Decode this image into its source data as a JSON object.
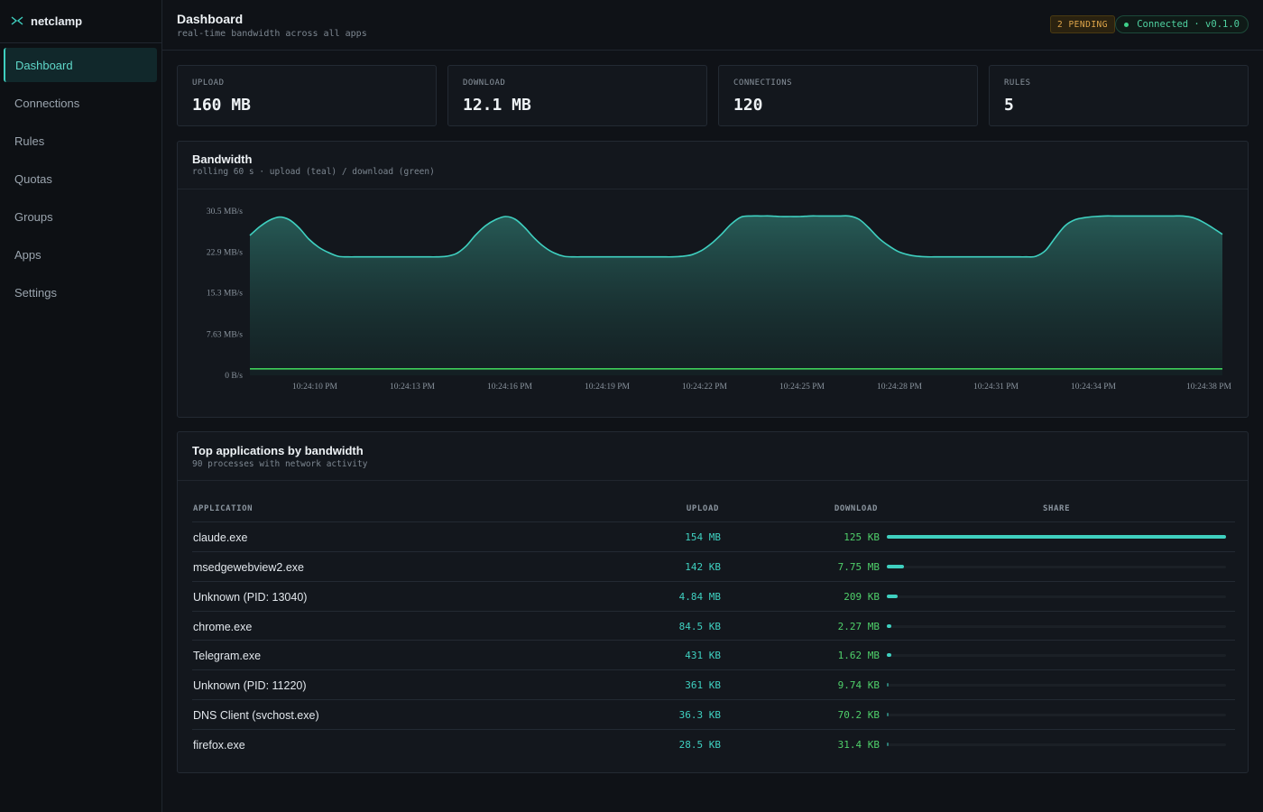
{
  "brand": {
    "name": "netclamp",
    "icon": "link-icon"
  },
  "nav": [
    {
      "label": "Dashboard",
      "active": true
    },
    {
      "label": "Connections"
    },
    {
      "label": "Rules"
    },
    {
      "label": "Quotas"
    },
    {
      "label": "Groups"
    },
    {
      "label": "Apps"
    },
    {
      "label": "Settings"
    }
  ],
  "header": {
    "title": "Dashboard",
    "subtitle": "real-time bandwidth across all apps",
    "pending": "2 PENDING",
    "connection": "Connected · v0.1.0"
  },
  "stats": [
    {
      "label": "UPLOAD",
      "value": "160 MB"
    },
    {
      "label": "DOWNLOAD",
      "value": "12.1 MB"
    },
    {
      "label": "CONNECTIONS",
      "value": "120"
    },
    {
      "label": "RULES",
      "value": "5"
    }
  ],
  "bandwidth": {
    "title": "Bandwidth",
    "subtitle": "rolling 60 s · upload (teal) / download (green)"
  },
  "chart_data": {
    "type": "area",
    "title": "Bandwidth",
    "ylim": [
      0,
      30.5
    ],
    "yticks": [
      "0 B/s",
      "7.63 MB/s",
      "15.3 MB/s",
      "22.9 MB/s",
      "30.5 MB/s"
    ],
    "ytick_values": [
      0,
      7.63,
      15.3,
      22.9,
      30.5
    ],
    "xticks": [
      "10:24:10 PM",
      "10:24:13 PM",
      "10:24:16 PM",
      "10:24:19 PM",
      "10:24:22 PM",
      "10:24:25 PM",
      "10:24:28 PM",
      "10:24:31 PM",
      "10:24:34 PM",
      "10:24:38 PM"
    ],
    "series": [
      {
        "name": "upload",
        "color": "#3fd0c0",
        "values": [
          26.0,
          27.6,
          28.8,
          29.4,
          28.9,
          27.4,
          25.3,
          23.8,
          22.8,
          22.1,
          22.0,
          22.0,
          22.0,
          22.0,
          22.0,
          22.0,
          22.0,
          22.0,
          22.0,
          22.0,
          22.1,
          22.6,
          24.0,
          26.1,
          27.8,
          28.9,
          29.5,
          29.0,
          27.4,
          25.4,
          23.8,
          22.7,
          22.1,
          22.0,
          22.0,
          22.0,
          22.0,
          22.0,
          22.0,
          22.0,
          22.0,
          22.0,
          22.0,
          22.0,
          22.1,
          22.4,
          23.2,
          24.5,
          26.2,
          28.1,
          29.4,
          29.6,
          29.6,
          29.6,
          29.5,
          29.5,
          29.5,
          29.6,
          29.6,
          29.6,
          29.6,
          29.6,
          29.0,
          27.4,
          25.5,
          24.1,
          23.0,
          22.4,
          22.1,
          22.0,
          22.0,
          22.0,
          22.0,
          22.0,
          22.0,
          22.0,
          22.0,
          22.0,
          22.0,
          22.0,
          22.1,
          23.2,
          25.6,
          27.8,
          28.9,
          29.3,
          29.5,
          29.6,
          29.6,
          29.6,
          29.6,
          29.6,
          29.6,
          29.6,
          29.6,
          29.6,
          29.3,
          28.5,
          27.4,
          26.2
        ]
      },
      {
        "name": "download",
        "color": "#3fcf5a",
        "values": [
          1.2,
          1.2,
          1.2,
          1.2,
          1.2,
          1.2,
          1.2,
          1.2,
          1.2,
          1.2,
          1.2,
          1.2,
          1.2,
          1.2,
          1.2,
          1.2,
          1.2,
          1.2,
          1.2,
          1.2,
          1.2,
          1.2,
          1.2,
          1.2,
          1.2,
          1.2,
          1.2,
          1.2,
          1.2,
          1.2,
          1.2,
          1.2,
          1.2,
          1.2,
          1.2,
          1.2,
          1.2,
          1.2,
          1.2,
          1.2,
          1.2,
          1.2,
          1.2,
          1.2,
          1.2,
          1.2,
          1.2,
          1.2,
          1.2,
          1.2,
          1.2,
          1.2,
          1.2,
          1.2,
          1.2,
          1.2,
          1.2,
          1.2,
          1.2,
          1.2,
          1.2,
          1.2,
          1.2,
          1.2,
          1.2,
          1.2,
          1.2,
          1.2,
          1.2,
          1.2,
          1.2,
          1.2,
          1.2,
          1.2,
          1.2,
          1.2,
          1.2,
          1.2,
          1.2,
          1.2,
          1.2,
          1.2,
          1.2,
          1.2,
          1.2,
          1.2,
          1.2,
          1.2,
          1.2,
          1.2,
          1.2,
          1.2,
          1.2,
          1.2,
          1.2,
          1.2,
          1.2,
          1.2,
          1.2,
          1.2
        ]
      }
    ]
  },
  "apps": {
    "title": "Top applications by bandwidth",
    "subtitle": "90 processes with network activity",
    "columns": {
      "app": "APPLICATION",
      "upload": "UPLOAD",
      "download": "DOWNLOAD",
      "share": "SHARE"
    },
    "rows": [
      {
        "name": "claude.exe",
        "upload": "154 MB",
        "download": "125 KB",
        "share": 1.0
      },
      {
        "name": "msedgewebview2.exe",
        "upload": "142 KB",
        "download": "7.75 MB",
        "share": 0.05
      },
      {
        "name": "Unknown (PID: 13040)",
        "upload": "4.84 MB",
        "download": "209 KB",
        "share": 0.032
      },
      {
        "name": "chrome.exe",
        "upload": "84.5 KB",
        "download": "2.27 MB",
        "share": 0.014
      },
      {
        "name": "Telegram.exe",
        "upload": "431 KB",
        "download": "1.62 MB",
        "share": 0.012
      },
      {
        "name": "Unknown (PID: 11220)",
        "upload": "361 KB",
        "download": "9.74 KB",
        "share": 0.002
      },
      {
        "name": "DNS Client (svchost.exe)",
        "upload": "36.3 KB",
        "download": "70.2 KB",
        "share": 0.001
      },
      {
        "name": "firefox.exe",
        "upload": "28.5 KB",
        "download": "31.4 KB",
        "share": 0.001
      }
    ]
  }
}
